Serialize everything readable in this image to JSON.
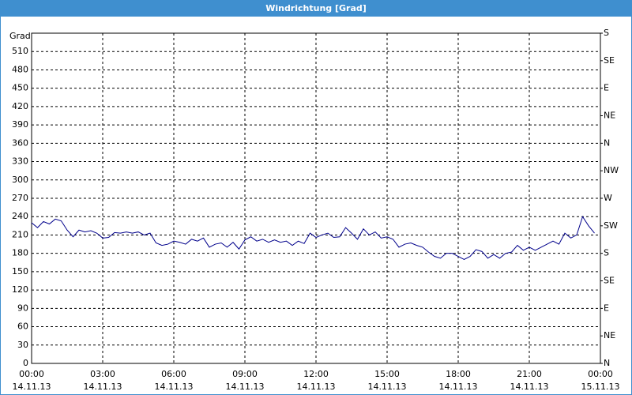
{
  "chart_data": {
    "type": "line",
    "title": "Windrichtung [Grad]",
    "y_label": "Grad",
    "x": [
      0,
      0.25,
      0.5,
      0.75,
      1,
      1.25,
      1.5,
      1.75,
      2,
      2.25,
      2.5,
      2.75,
      3,
      3.25,
      3.5,
      3.75,
      4,
      4.25,
      4.5,
      4.75,
      5,
      5.25,
      5.5,
      5.75,
      6,
      6.25,
      6.5,
      6.75,
      7,
      7.25,
      7.5,
      7.75,
      8,
      8.25,
      8.5,
      8.75,
      9,
      9.25,
      9.5,
      9.75,
      10,
      10.25,
      10.5,
      10.75,
      11,
      11.25,
      11.5,
      11.75,
      12,
      12.25,
      12.5,
      12.75,
      13,
      13.25,
      13.5,
      13.75,
      14,
      14.25,
      14.5,
      14.75,
      15,
      15.25,
      15.5,
      15.75,
      16,
      16.25,
      16.5,
      16.75,
      17,
      17.25,
      17.5,
      17.75,
      18,
      18.25,
      18.5,
      18.75,
      19,
      19.25,
      19.5,
      19.75,
      20,
      20.25,
      20.5,
      20.75,
      21,
      21.25,
      21.5,
      21.75,
      22,
      22.25,
      22.5,
      22.75,
      23,
      23.25,
      23.5,
      23.75
    ],
    "series": [
      {
        "color": "#00008b",
        "values": [
          230,
          222,
          232,
          228,
          236,
          233,
          218,
          207,
          218,
          215,
          217,
          213,
          205,
          206,
          214,
          213,
          215,
          213,
          215,
          210,
          213,
          197,
          193,
          195,
          200,
          198,
          195,
          203,
          200,
          205,
          190,
          195,
          197,
          190,
          198,
          187,
          202,
          207,
          200,
          203,
          198,
          202,
          198,
          200,
          193,
          200,
          196,
          213,
          206,
          210,
          213,
          206,
          207,
          222,
          213,
          203,
          220,
          210,
          215,
          205,
          207,
          203,
          190,
          195,
          197,
          193,
          190,
          182,
          175,
          172,
          180,
          180,
          175,
          170,
          175,
          186,
          183,
          172,
          178,
          172,
          180,
          182,
          193,
          185,
          190,
          185,
          190,
          195,
          200,
          195,
          213,
          205,
          210,
          240,
          225,
          213
        ]
      }
    ],
    "xlim": [
      0,
      24
    ],
    "xticks": [
      {
        "value": 0,
        "label": "00:00"
      },
      {
        "value": 3,
        "label": "03:00"
      },
      {
        "value": 6,
        "label": "06:00"
      },
      {
        "value": 9,
        "label": "09:00"
      },
      {
        "value": 12,
        "label": "12:00"
      },
      {
        "value": 15,
        "label": "15:00"
      },
      {
        "value": 18,
        "label": "18:00"
      },
      {
        "value": 21,
        "label": "21:00"
      },
      {
        "value": 24,
        "label": "00:00"
      }
    ],
    "xtick_dates": [
      "14.11.13",
      "14.11.13",
      "14.11.13",
      "14.11.13",
      "14.11.13",
      "14.11.13",
      "14.11.13",
      "14.11.13",
      "15.11.13"
    ],
    "ylim": [
      0,
      540
    ],
    "yticks": [
      0,
      30,
      60,
      90,
      120,
      150,
      180,
      210,
      240,
      270,
      300,
      330,
      360,
      390,
      420,
      450,
      480,
      510
    ],
    "y2lim": [
      0,
      540
    ],
    "y2ticks": [
      {
        "value": 0,
        "label": "N"
      },
      {
        "value": 45,
        "label": "NE"
      },
      {
        "value": 90,
        "label": "E"
      },
      {
        "value": 135,
        "label": "SE"
      },
      {
        "value": 180,
        "label": "S"
      },
      {
        "value": 225,
        "label": "SW"
      },
      {
        "value": 270,
        "label": "W"
      },
      {
        "value": 315,
        "label": "NW"
      },
      {
        "value": 360,
        "label": "N"
      },
      {
        "value": 405,
        "label": "NE"
      },
      {
        "value": 450,
        "label": "E"
      },
      {
        "value": 495,
        "label": "SE"
      },
      {
        "value": 540,
        "label": "S"
      }
    ],
    "grid": true
  }
}
